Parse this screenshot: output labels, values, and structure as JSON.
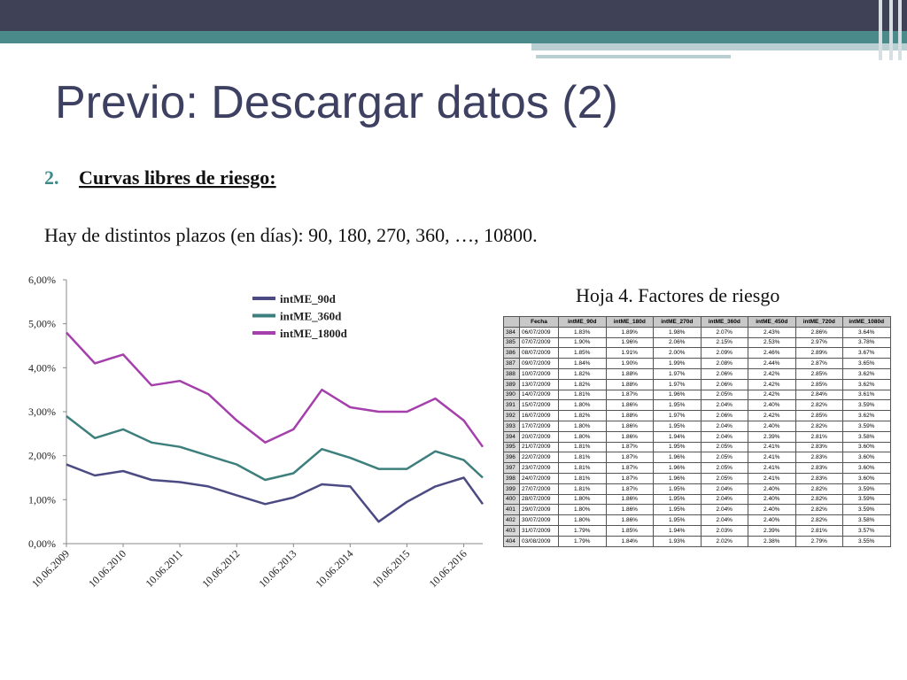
{
  "slide": {
    "title": "Previo: Descargar datos (2)",
    "item_number": "2.",
    "item_text": "Curvas libres de riesgo:",
    "body": "Hay de distintos plazos (en días): 90, 180, 270, 360, …, 10800."
  },
  "chart_data": {
    "type": "line",
    "x": [
      "2009-06-10",
      "2009-12-10",
      "2010-06-10",
      "2010-12-10",
      "2011-06-10",
      "2011-12-10",
      "2012-06-10",
      "2012-12-10",
      "2013-06-10",
      "2013-12-10",
      "2014-06-10",
      "2014-12-10",
      "2015-06-10",
      "2015-12-10",
      "2016-06-10",
      "2016-10-10"
    ],
    "series": [
      {
        "name": "intME_90d",
        "color": "#4b4a82",
        "values": [
          1.8,
          1.55,
          1.65,
          1.45,
          1.4,
          1.3,
          1.1,
          0.9,
          1.05,
          1.35,
          1.3,
          0.5,
          0.95,
          1.3,
          1.5,
          0.9
        ]
      },
      {
        "name": "intME_360d",
        "color": "#3d7f7d",
        "values": [
          2.9,
          2.4,
          2.6,
          2.3,
          2.2,
          2.0,
          1.8,
          1.45,
          1.6,
          2.15,
          1.95,
          1.7,
          1.7,
          2.1,
          1.9,
          1.5
        ]
      },
      {
        "name": "intME_1800d",
        "color": "#a43fab",
        "values": [
          4.8,
          4.1,
          4.3,
          3.6,
          3.7,
          3.4,
          2.8,
          2.3,
          2.6,
          3.5,
          3.1,
          3.0,
          3.0,
          3.3,
          2.8,
          2.2
        ]
      }
    ],
    "xlim": [
      "2009-06-10",
      "2016-10-10"
    ],
    "xticks": [
      {
        "value": "2009-06-10",
        "label": "10.06.2009"
      },
      {
        "value": "2010-06-10",
        "label": "10.06.2010"
      },
      {
        "value": "2011-06-10",
        "label": "10.06.2011"
      },
      {
        "value": "2012-06-10",
        "label": "10.06.2012"
      },
      {
        "value": "2013-06-10",
        "label": "10.06.2013"
      },
      {
        "value": "2014-06-10",
        "label": "10.06.2014"
      },
      {
        "value": "2015-06-10",
        "label": "10.06.2015"
      },
      {
        "value": "2016-06-10",
        "label": "10.06.2016"
      }
    ],
    "ylim": [
      0,
      6
    ],
    "yticks": [
      {
        "value": 0,
        "label": "0,00%"
      },
      {
        "value": 1,
        "label": "1,00%"
      },
      {
        "value": 2,
        "label": "2,00%"
      },
      {
        "value": 3,
        "label": "3,00%"
      },
      {
        "value": 4,
        "label": "4,00%"
      },
      {
        "value": 5,
        "label": "5,00%"
      },
      {
        "value": 6,
        "label": "6,00%"
      }
    ],
    "legend": "upper right"
  },
  "table": {
    "caption": "Hoja 4. Factores de riesgo",
    "header": [
      "Fecha",
      "intME_90d",
      "intME_180d",
      "intME_270d",
      "intME_360d",
      "intME_450d",
      "intME_720d",
      "intME_1080d"
    ],
    "rows": [
      [
        "384",
        "06/07/2009",
        "1.83%",
        "1.89%",
        "1.98%",
        "2.07%",
        "2.43%",
        "2.86%",
        "3.64%"
      ],
      [
        "385",
        "07/07/2009",
        "1.90%",
        "1.96%",
        "2.06%",
        "2.15%",
        "2.53%",
        "2.97%",
        "3.78%"
      ],
      [
        "386",
        "08/07/2009",
        "1.85%",
        "1.91%",
        "2.00%",
        "2.09%",
        "2.46%",
        "2.89%",
        "3.67%"
      ],
      [
        "387",
        "09/07/2009",
        "1.84%",
        "1.90%",
        "1.99%",
        "2.08%",
        "2.44%",
        "2.87%",
        "3.65%"
      ],
      [
        "388",
        "10/07/2009",
        "1.82%",
        "1.88%",
        "1.97%",
        "2.06%",
        "2.42%",
        "2.85%",
        "3.62%"
      ],
      [
        "389",
        "13/07/2009",
        "1.82%",
        "1.88%",
        "1.97%",
        "2.06%",
        "2.42%",
        "2.85%",
        "3.62%"
      ],
      [
        "390",
        "14/07/2009",
        "1.81%",
        "1.87%",
        "1.96%",
        "2.05%",
        "2.42%",
        "2.84%",
        "3.61%"
      ],
      [
        "391",
        "15/07/2009",
        "1.80%",
        "1.86%",
        "1.95%",
        "2.04%",
        "2.40%",
        "2.82%",
        "3.59%"
      ],
      [
        "392",
        "16/07/2009",
        "1.82%",
        "1.88%",
        "1.97%",
        "2.06%",
        "2.42%",
        "2.85%",
        "3.62%"
      ],
      [
        "393",
        "17/07/2009",
        "1.80%",
        "1.86%",
        "1.95%",
        "2.04%",
        "2.40%",
        "2.82%",
        "3.59%"
      ],
      [
        "394",
        "20/07/2009",
        "1.80%",
        "1.86%",
        "1.94%",
        "2.04%",
        "2.39%",
        "2.81%",
        "3.58%"
      ],
      [
        "395",
        "21/07/2009",
        "1.81%",
        "1.87%",
        "1.95%",
        "2.05%",
        "2.41%",
        "2.83%",
        "3.60%"
      ],
      [
        "396",
        "22/07/2009",
        "1.81%",
        "1.87%",
        "1.96%",
        "2.05%",
        "2.41%",
        "2.83%",
        "3.60%"
      ],
      [
        "397",
        "23/07/2009",
        "1.81%",
        "1.87%",
        "1.96%",
        "2.05%",
        "2.41%",
        "2.83%",
        "3.60%"
      ],
      [
        "398",
        "24/07/2009",
        "1.81%",
        "1.87%",
        "1.96%",
        "2.05%",
        "2.41%",
        "2.83%",
        "3.60%"
      ],
      [
        "399",
        "27/07/2009",
        "1.81%",
        "1.87%",
        "1.95%",
        "2.04%",
        "2.40%",
        "2.82%",
        "3.59%"
      ],
      [
        "400",
        "28/07/2009",
        "1.80%",
        "1.86%",
        "1.95%",
        "2.04%",
        "2.40%",
        "2.82%",
        "3.59%"
      ],
      [
        "401",
        "29/07/2009",
        "1.80%",
        "1.86%",
        "1.95%",
        "2.04%",
        "2.40%",
        "2.82%",
        "3.59%"
      ],
      [
        "402",
        "30/07/2009",
        "1.80%",
        "1.86%",
        "1.95%",
        "2.04%",
        "2.40%",
        "2.82%",
        "3.58%"
      ],
      [
        "403",
        "31/07/2009",
        "1.79%",
        "1.85%",
        "1.94%",
        "2.03%",
        "2.39%",
        "2.81%",
        "3.57%"
      ],
      [
        "404",
        "03/08/2009",
        "1.79%",
        "1.84%",
        "1.93%",
        "2.02%",
        "2.38%",
        "2.79%",
        "3.55%"
      ]
    ]
  }
}
